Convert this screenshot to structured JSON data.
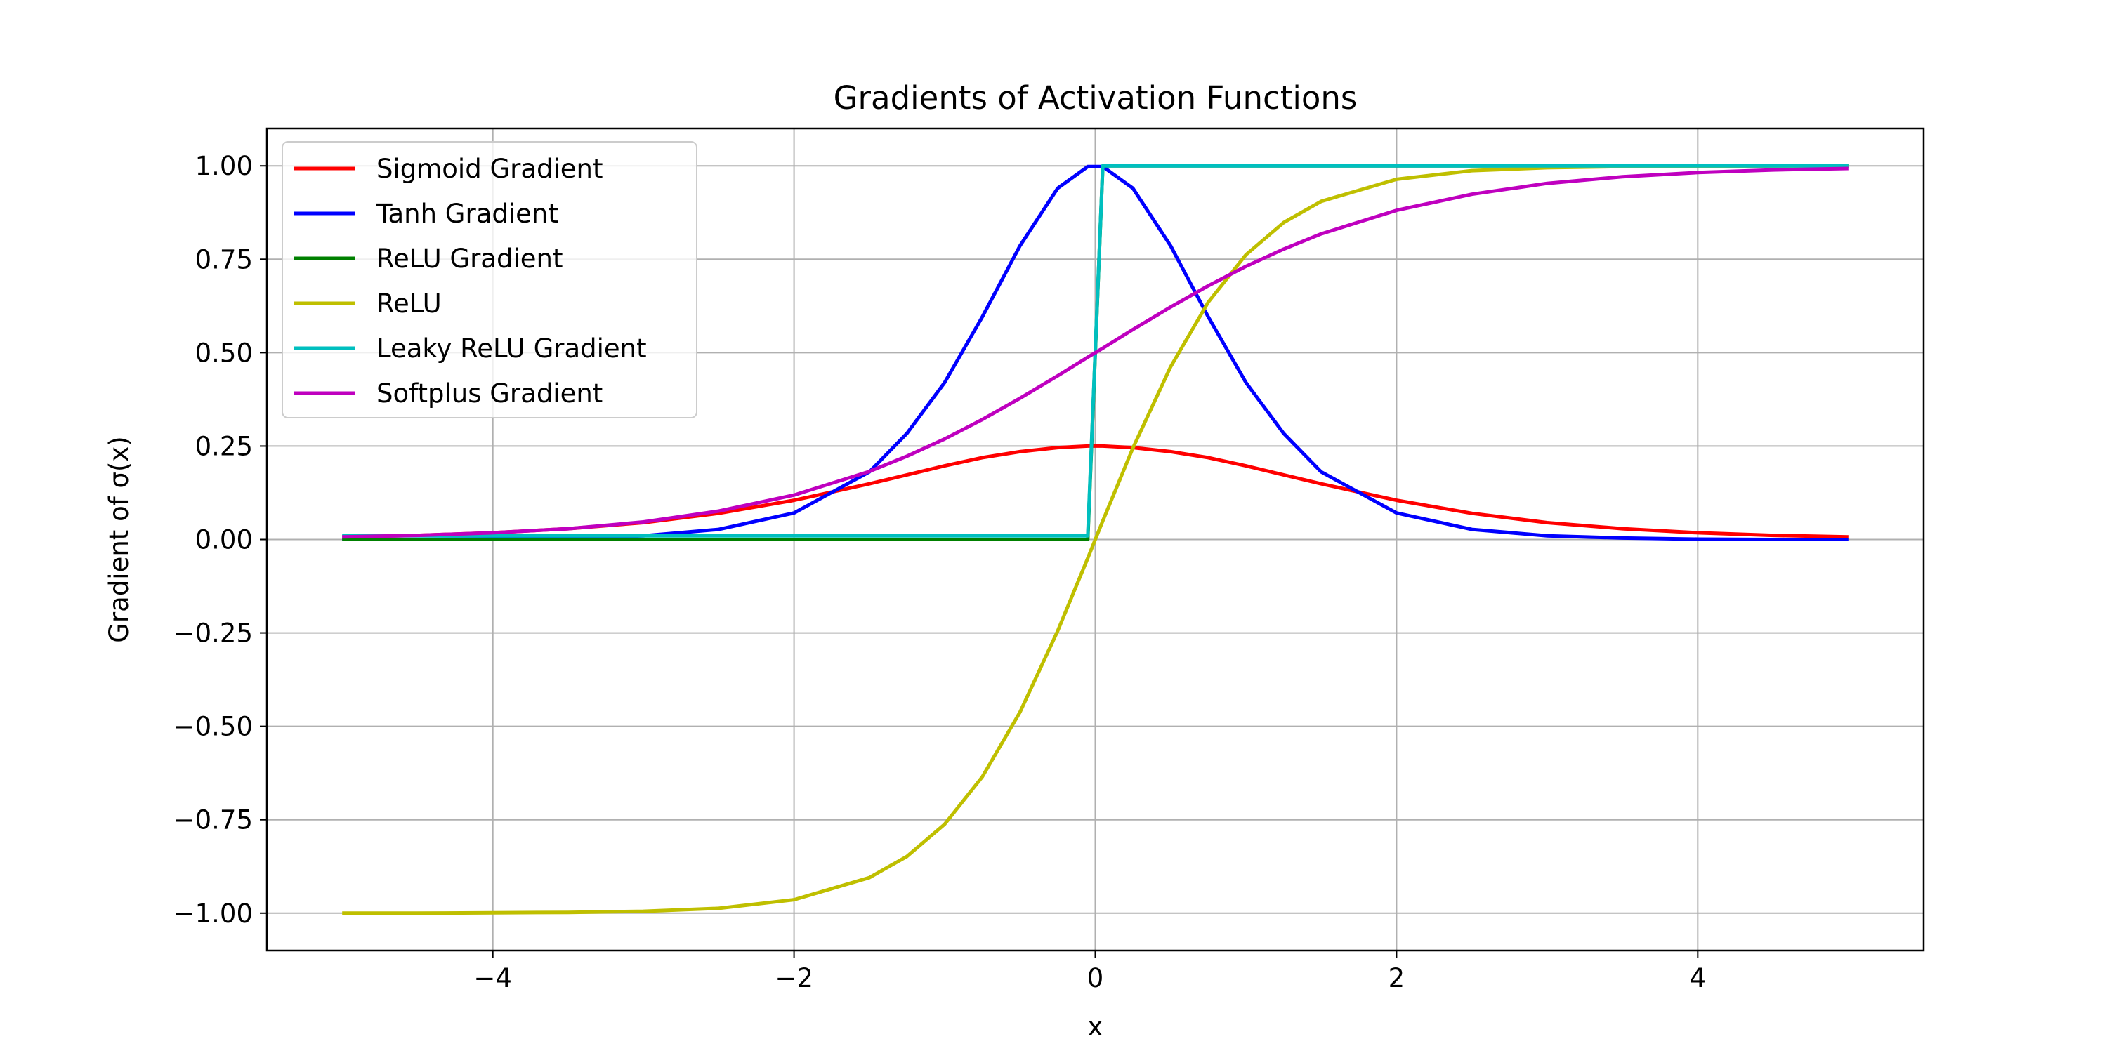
{
  "chart_data": {
    "type": "line",
    "title": "Gradients of Activation Functions",
    "xlabel": "x",
    "ylabel": "Gradient of σ(x)",
    "xlim": [
      -5.5,
      5.5
    ],
    "ylim": [
      -1.1,
      1.1
    ],
    "xticks": [
      -4,
      -2,
      0,
      2,
      4
    ],
    "xtick_labels": [
      "−4",
      "−2",
      "0",
      "2",
      "4"
    ],
    "yticks": [
      -1.0,
      -0.75,
      -0.5,
      -0.25,
      0.0,
      0.25,
      0.5,
      0.75,
      1.0
    ],
    "ytick_labels": [
      "−1.00",
      "−0.75",
      "−0.50",
      "−0.25",
      "0.00",
      "0.25",
      "0.50",
      "0.75",
      "1.00"
    ],
    "grid": true,
    "legend_position": "upper-left",
    "x": [
      -5.0,
      -4.5,
      -4.0,
      -3.5,
      -3.0,
      -2.5,
      -2.0,
      -1.5,
      -1.25,
      -1.0,
      -0.75,
      -0.5,
      -0.25,
      -0.05,
      0.05,
      0.25,
      0.5,
      0.75,
      1.0,
      1.25,
      1.5,
      2.0,
      2.5,
      3.0,
      3.5,
      4.0,
      4.5,
      5.0
    ],
    "series": [
      {
        "name": "Sigmoid Gradient",
        "color": "#ff0000",
        "values": [
          0.007,
          0.011,
          0.018,
          0.029,
          0.045,
          0.07,
          0.105,
          0.149,
          0.173,
          0.197,
          0.219,
          0.235,
          0.246,
          0.25,
          0.25,
          0.246,
          0.235,
          0.219,
          0.197,
          0.173,
          0.149,
          0.105,
          0.07,
          0.045,
          0.029,
          0.018,
          0.011,
          0.007
        ]
      },
      {
        "name": "Tanh Gradient",
        "color": "#0000ff",
        "values": [
          0.0,
          0.0,
          0.001,
          0.004,
          0.01,
          0.027,
          0.071,
          0.181,
          0.284,
          0.42,
          0.596,
          0.786,
          0.94,
          0.998,
          0.998,
          0.94,
          0.786,
          0.596,
          0.42,
          0.284,
          0.181,
          0.071,
          0.027,
          0.01,
          0.004,
          0.001,
          0.0,
          0.0
        ]
      },
      {
        "name": "ReLU Gradient",
        "color": "#008000",
        "values": [
          0,
          0,
          0,
          0,
          0,
          0,
          0,
          0,
          0,
          0,
          0,
          0,
          0,
          0,
          1,
          1,
          1,
          1,
          1,
          1,
          1,
          1,
          1,
          1,
          1,
          1,
          1,
          1
        ]
      },
      {
        "name": "ReLU",
        "color": "#bfbf00",
        "values": [
          -1.0,
          -1.0,
          -0.999,
          -0.998,
          -0.995,
          -0.987,
          -0.964,
          -0.905,
          -0.848,
          -0.762,
          -0.635,
          -0.462,
          -0.245,
          -0.05,
          0.05,
          0.245,
          0.462,
          0.635,
          0.762,
          0.848,
          0.905,
          0.964,
          0.987,
          0.995,
          0.998,
          0.999,
          1.0,
          1.0
        ]
      },
      {
        "name": "Leaky ReLU Gradient",
        "color": "#00bfbf",
        "values": [
          0.01,
          0.01,
          0.01,
          0.01,
          0.01,
          0.01,
          0.01,
          0.01,
          0.01,
          0.01,
          0.01,
          0.01,
          0.01,
          0.01,
          1,
          1,
          1,
          1,
          1,
          1,
          1,
          1,
          1,
          1,
          1,
          1,
          1,
          1
        ]
      },
      {
        "name": "Softplus Gradient",
        "color": "#bf00bf",
        "values": [
          0.007,
          0.011,
          0.018,
          0.029,
          0.047,
          0.076,
          0.119,
          0.182,
          0.223,
          0.269,
          0.321,
          0.378,
          0.438,
          0.488,
          0.512,
          0.562,
          0.622,
          0.679,
          0.731,
          0.777,
          0.818,
          0.881,
          0.924,
          0.953,
          0.971,
          0.982,
          0.989,
          0.993
        ]
      }
    ]
  }
}
